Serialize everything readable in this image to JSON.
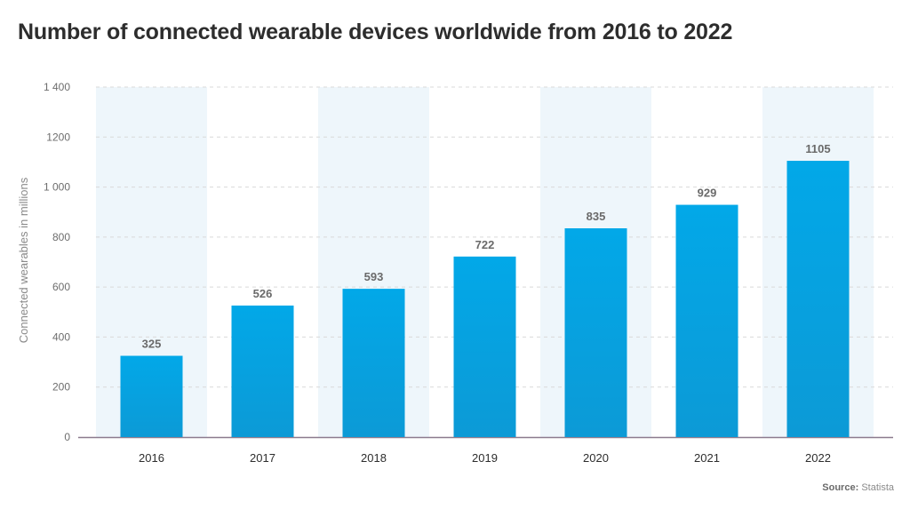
{
  "chart_data": {
    "type": "bar",
    "title": "Number of connected wearable devices worldwide from 2016 to 2022",
    "xlabel": "",
    "ylabel": "Connected wearables in millions",
    "categories": [
      "2016",
      "2017",
      "2018",
      "2019",
      "2020",
      "2021",
      "2022"
    ],
    "values": [
      325,
      526,
      593,
      722,
      835,
      929,
      1105
    ],
    "ylim": [
      0,
      1400
    ],
    "yticks": [
      0,
      200,
      400,
      600,
      800,
      1000,
      1200,
      1400
    ],
    "ytick_labels": [
      "0",
      "200",
      "400",
      "600",
      "800",
      "1 000",
      "1200",
      "1 400"
    ],
    "grid": true,
    "alternating_column_shading": true,
    "colors": {
      "bar_top": "#02a8e8",
      "bar_bottom": "#0c9ad6",
      "band": "#eef6fb",
      "grid": "#d9d9d9",
      "axis": "#8c7b8e"
    }
  },
  "source": {
    "label": "Source:",
    "value": "Statista"
  }
}
